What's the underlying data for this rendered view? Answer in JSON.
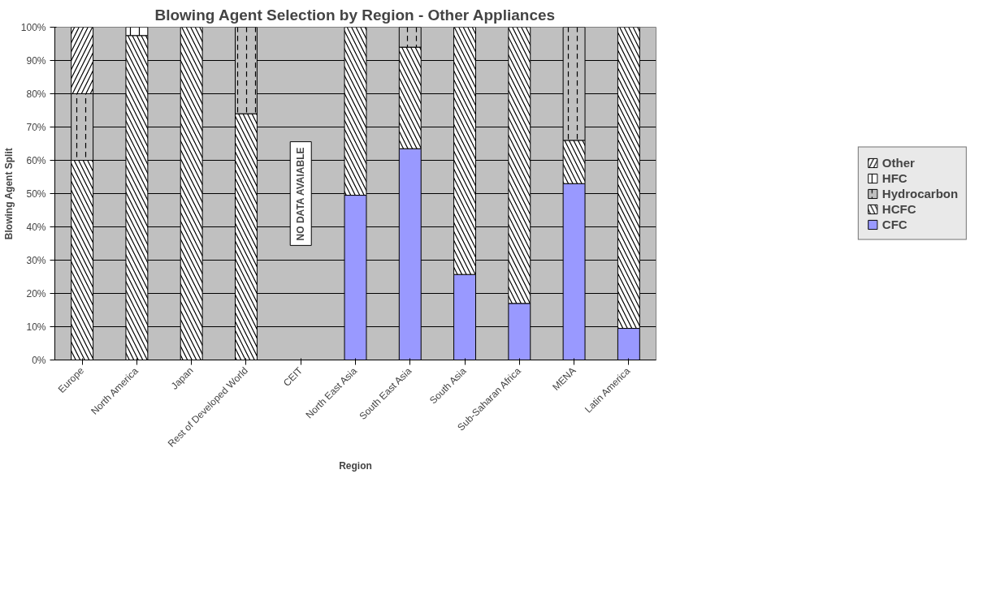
{
  "chart_data": {
    "type": "bar",
    "stacked": true,
    "title": "Blowing Agent Selection by Region - Other Appliances",
    "xlabel": "Region",
    "ylabel": "Blowing Agent Split",
    "categories": [
      "Europe",
      "North America",
      "Japan",
      "Rest of Developed World",
      "CEIT",
      "North East Asia",
      "South East Asia",
      "South Asia",
      "Sub-Saharan Africa",
      "MENA",
      "Latin America"
    ],
    "series": [
      {
        "name": "CFC",
        "color": "#9999ff",
        "values": [
          0,
          0,
          0,
          0,
          null,
          49.5,
          63.5,
          25.7,
          17,
          53,
          9.5
        ]
      },
      {
        "name": "HCFC",
        "color": "#ffffff",
        "values": [
          60,
          97.5,
          100,
          74,
          null,
          50.5,
          30.5,
          74.3,
          83,
          13,
          90.5
        ]
      },
      {
        "name": "Hydrocarbon",
        "color": "#c0c0c0",
        "values": [
          20,
          0,
          0,
          26,
          null,
          0,
          6,
          0,
          0,
          34,
          0
        ]
      },
      {
        "name": "HFC",
        "color": "#ffffff",
        "values": [
          0,
          2.5,
          0,
          0,
          null,
          0,
          0,
          0,
          0,
          0,
          0
        ]
      },
      {
        "name": "Other",
        "color": "#ffffff",
        "values": [
          20,
          0,
          0,
          0,
          null,
          0,
          0,
          0,
          0,
          0,
          0
        ]
      }
    ],
    "ylim": [
      0,
      100
    ],
    "yticks": [
      {
        "value": 0,
        "label": "0%"
      },
      {
        "value": 10,
        "label": "10%"
      },
      {
        "value": 20,
        "label": "20%"
      },
      {
        "value": 30,
        "label": "30%"
      },
      {
        "value": 40,
        "label": "40%"
      },
      {
        "value": 50,
        "label": "50%"
      },
      {
        "value": 60,
        "label": "60%"
      },
      {
        "value": 70,
        "label": "70%"
      },
      {
        "value": 80,
        "label": "80%"
      },
      {
        "value": 90,
        "label": "90%"
      },
      {
        "value": 100,
        "label": "100%"
      }
    ],
    "grid": "y",
    "legend": "right",
    "annotations": [
      "NO DATA AVAIABLE"
    ]
  }
}
